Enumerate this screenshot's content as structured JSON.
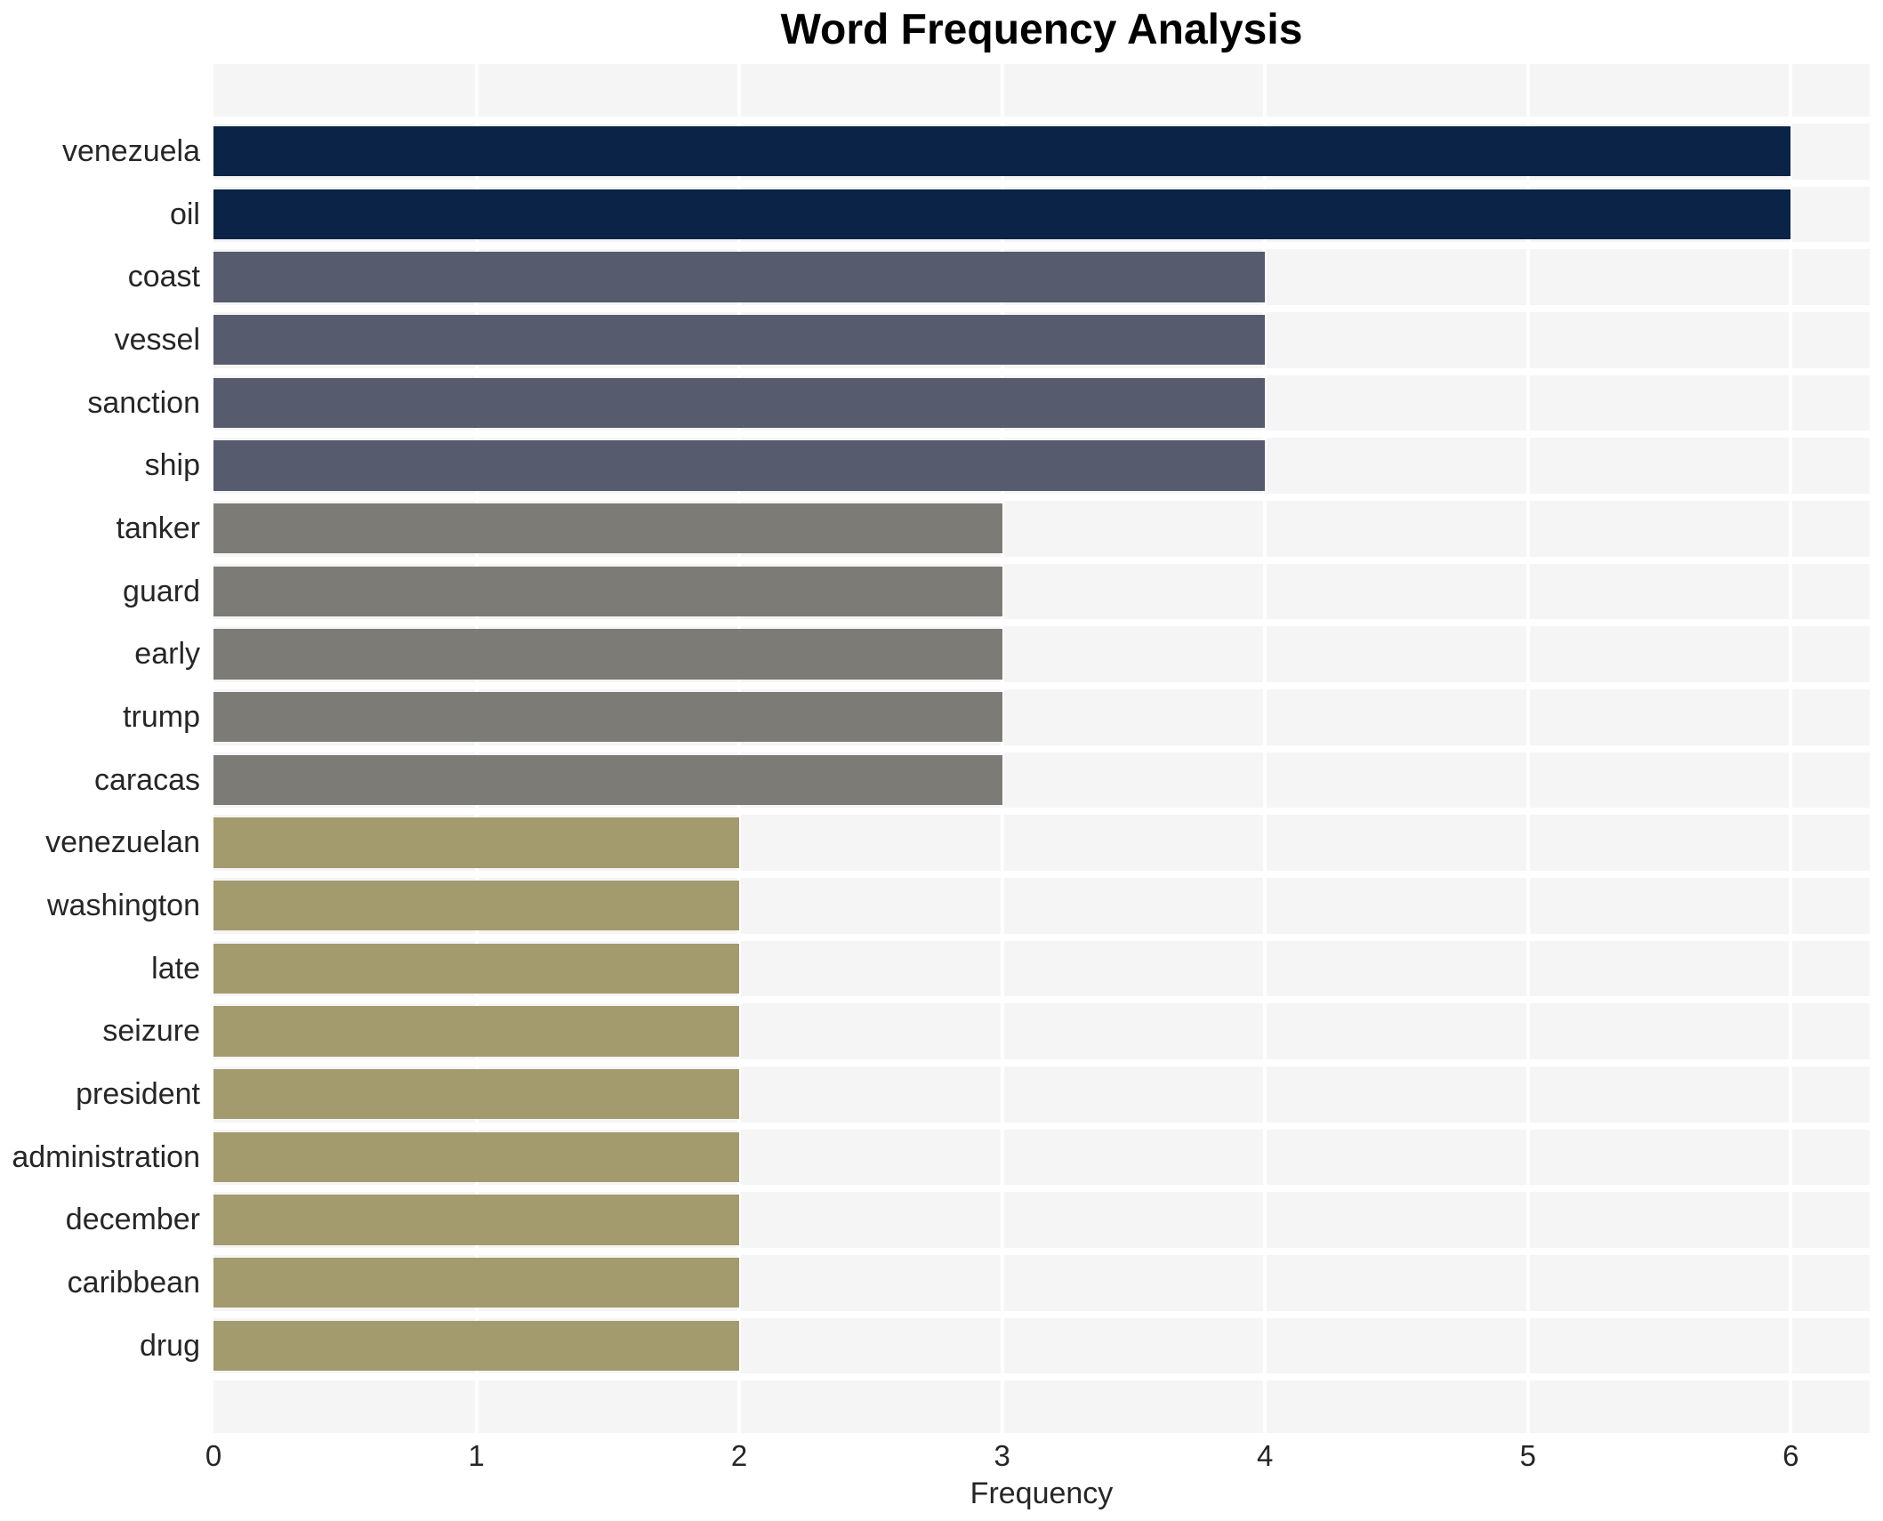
{
  "title": "Word Frequency Analysis",
  "colors": {
    "tier_6": "#0b2347",
    "tier_4": "#565b6e",
    "tier_3": "#7c7b75",
    "tier_2": "#a39b6e",
    "plot_background": "#f5f5f6",
    "grid_line": "#ffffff",
    "tick_text": "#262626",
    "title_text": "#000000"
  },
  "chart_data": {
    "type": "bar",
    "orientation": "horizontal",
    "title": "Word Frequency Analysis",
    "xlabel": "Frequency",
    "ylabel": "",
    "categories": [
      "venezuela",
      "oil",
      "coast",
      "vessel",
      "sanction",
      "ship",
      "tanker",
      "guard",
      "early",
      "trump",
      "caracas",
      "venezuelan",
      "washington",
      "late",
      "seizure",
      "president",
      "administration",
      "december",
      "caribbean",
      "drug"
    ],
    "values": [
      6,
      6,
      4,
      4,
      4,
      4,
      3,
      3,
      3,
      3,
      3,
      2,
      2,
      2,
      2,
      2,
      2,
      2,
      2,
      2
    ],
    "bar_colors": [
      "#0b2347",
      "#0b2347",
      "#565b6e",
      "#565b6e",
      "#565b6e",
      "#565b6e",
      "#7c7b75",
      "#7c7b75",
      "#7c7b75",
      "#7c7b75",
      "#7c7b75",
      "#a39b6e",
      "#a39b6e",
      "#a39b6e",
      "#a39b6e",
      "#a39b6e",
      "#a39b6e",
      "#a39b6e",
      "#a39b6e",
      "#a39b6e"
    ],
    "x_ticks": [
      0,
      1,
      2,
      3,
      4,
      5,
      6
    ],
    "xlim": [
      0,
      6.3
    ],
    "grid": true,
    "legend": false
  }
}
